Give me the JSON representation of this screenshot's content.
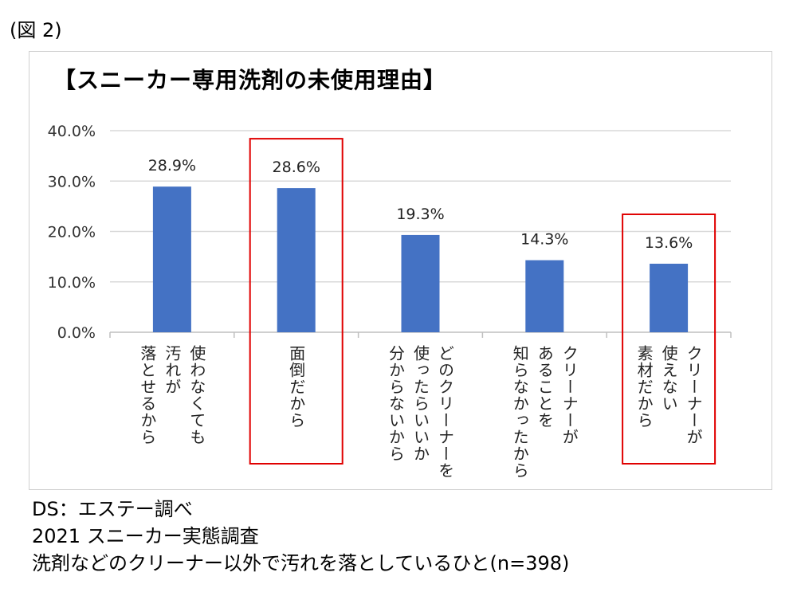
{
  "figure_label": "(図 2)",
  "notes": [
    "DS：エステー調べ",
    "2021 スニーカー実態調査",
    "洗剤などのクリーナー以外で汚れを落としているひと(n=398)"
  ],
  "colors": {
    "bar": "#4472c4",
    "highlight": "#e00000",
    "grid": "#d9d9d9",
    "axis": "#bfbfbf"
  },
  "chart_data": {
    "type": "bar",
    "title": "【スニーカー専用洗剤の未使用理由】",
    "xlabel": "",
    "ylabel": "",
    "ylim": [
      0,
      40
    ],
    "y_ticks": [
      "0.0%",
      "10.0%",
      "20.0%",
      "30.0%",
      "40.0%"
    ],
    "grid": true,
    "legend": "none",
    "categories": [
      "使わなくても汚れが落とせるから",
      "面倒だから",
      "どのクリーナーを使ったらいいか分からないから",
      "クリーナーがあることを知らなかったから",
      "クリーナーが使えない素材だから"
    ],
    "category_label_columns": [
      [
        "使わなくても",
        "汚れが",
        "落とせるから"
      ],
      [
        "面倒だから"
      ],
      [
        "どのクリーナーを",
        "使ったらいいか",
        "分からないから"
      ],
      [
        "クリーナーが",
        "あることを",
        "知らなかったから"
      ],
      [
        "クリーナーが",
        "使えない",
        "素材だから"
      ]
    ],
    "values": [
      28.9,
      28.6,
      19.3,
      14.3,
      13.6
    ],
    "data_labels": [
      "28.9%",
      "28.6%",
      "19.3%",
      "14.3%",
      "13.6%"
    ],
    "highlighted": [
      "面倒だから",
      "クリーナーが使えない素材だから"
    ]
  }
}
